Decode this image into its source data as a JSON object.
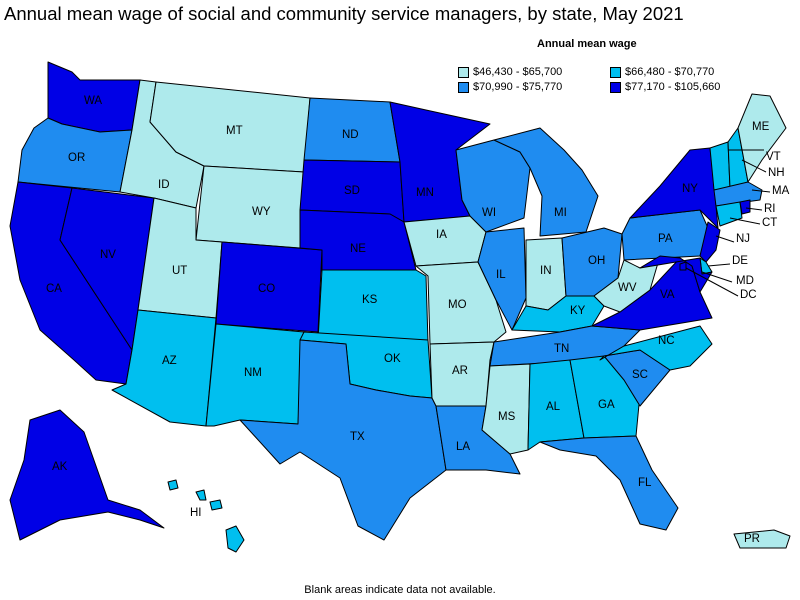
{
  "title": "Annual mean wage of social and community service managers, by state, May 2021",
  "legend": {
    "title": "Annual mean wage",
    "items": [
      {
        "label": "$46,430 - $65,700",
        "color": "#aeeaec"
      },
      {
        "label": "$66,480 - $70,770",
        "color": "#00bfef"
      },
      {
        "label": "$70,990 - $75,770",
        "color": "#1f8cf0"
      },
      {
        "label": "$77,170 - $105,660",
        "color": "#0000e6"
      }
    ]
  },
  "footnote": "Blank areas indicate data not available.",
  "states": [
    {
      "abbr": "WA",
      "bin": 3
    },
    {
      "abbr": "OR",
      "bin": 2
    },
    {
      "abbr": "CA",
      "bin": 3
    },
    {
      "abbr": "NV",
      "bin": 3
    },
    {
      "abbr": "ID",
      "bin": 0
    },
    {
      "abbr": "MT",
      "bin": 0
    },
    {
      "abbr": "WY",
      "bin": 0
    },
    {
      "abbr": "UT",
      "bin": 0
    },
    {
      "abbr": "AZ",
      "bin": 1
    },
    {
      "abbr": "CO",
      "bin": 3
    },
    {
      "abbr": "NM",
      "bin": 1
    },
    {
      "abbr": "ND",
      "bin": 2
    },
    {
      "abbr": "SD",
      "bin": 3
    },
    {
      "abbr": "NE",
      "bin": 3
    },
    {
      "abbr": "KS",
      "bin": 1
    },
    {
      "abbr": "OK",
      "bin": 1
    },
    {
      "abbr": "TX",
      "bin": 2
    },
    {
      "abbr": "MN",
      "bin": 3
    },
    {
      "abbr": "IA",
      "bin": 0
    },
    {
      "abbr": "MO",
      "bin": 0
    },
    {
      "abbr": "AR",
      "bin": 0
    },
    {
      "abbr": "LA",
      "bin": 2
    },
    {
      "abbr": "WI",
      "bin": 2
    },
    {
      "abbr": "IL",
      "bin": 2
    },
    {
      "abbr": "MI",
      "bin": 2
    },
    {
      "abbr": "IN",
      "bin": 0
    },
    {
      "abbr": "OH",
      "bin": 2
    },
    {
      "abbr": "KY",
      "bin": 1
    },
    {
      "abbr": "TN",
      "bin": 2
    },
    {
      "abbr": "MS",
      "bin": 0
    },
    {
      "abbr": "AL",
      "bin": 1
    },
    {
      "abbr": "GA",
      "bin": 1
    },
    {
      "abbr": "FL",
      "bin": 2
    },
    {
      "abbr": "SC",
      "bin": 2
    },
    {
      "abbr": "NC",
      "bin": 1
    },
    {
      "abbr": "VA",
      "bin": 3
    },
    {
      "abbr": "WV",
      "bin": 0
    },
    {
      "abbr": "PA",
      "bin": 2
    },
    {
      "abbr": "NY",
      "bin": 3
    },
    {
      "abbr": "NJ",
      "bin": 3
    },
    {
      "abbr": "DE",
      "bin": 1
    },
    {
      "abbr": "MD",
      "bin": 3
    },
    {
      "abbr": "DC",
      "bin": 3
    },
    {
      "abbr": "VT",
      "bin": 1
    },
    {
      "abbr": "NH",
      "bin": 1
    },
    {
      "abbr": "ME",
      "bin": 0
    },
    {
      "abbr": "MA",
      "bin": 2
    },
    {
      "abbr": "CT",
      "bin": 1
    },
    {
      "abbr": "RI",
      "bin": 3
    },
    {
      "abbr": "AK",
      "bin": 3
    },
    {
      "abbr": "HI",
      "bin": 1
    },
    {
      "abbr": "PR",
      "bin": 0
    }
  ]
}
